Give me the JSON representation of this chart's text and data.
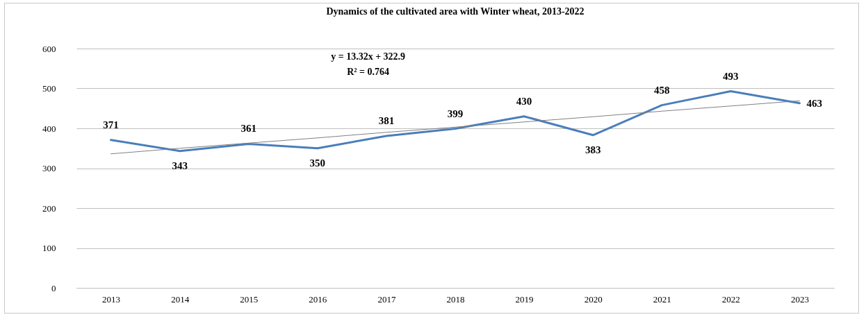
{
  "chart_data": {
    "type": "line",
    "title": "Dynamics of the cultivated area with Winter wheat, 2013-2022",
    "categories": [
      "2013",
      "2014",
      "2015",
      "2016",
      "2017",
      "2018",
      "2019",
      "2020",
      "2021",
      "2022",
      "2023"
    ],
    "series": [
      {
        "color": "#4a7ebb",
        "values": [
          371,
          343,
          361,
          350,
          381,
          399,
          430,
          383,
          458,
          493,
          463
        ],
        "value_labels": [
          "371",
          "343",
          "361",
          "350",
          "381",
          "399",
          "430",
          "383",
          "458",
          "493",
          "463"
        ]
      },
      {
        "type": "line",
        "color": "#808080",
        "values": [
          336,
          350,
          363,
          376,
          390,
          403,
          416,
          429,
          443,
          456,
          469
        ]
      }
    ],
    "ylim": [
      0,
      600
    ],
    "yticks": [
      0,
      100,
      200,
      300,
      400,
      500,
      600
    ],
    "grid": "y",
    "annotations": [
      "y = 13.32x + 322.9",
      "R² = 0.764"
    ]
  }
}
